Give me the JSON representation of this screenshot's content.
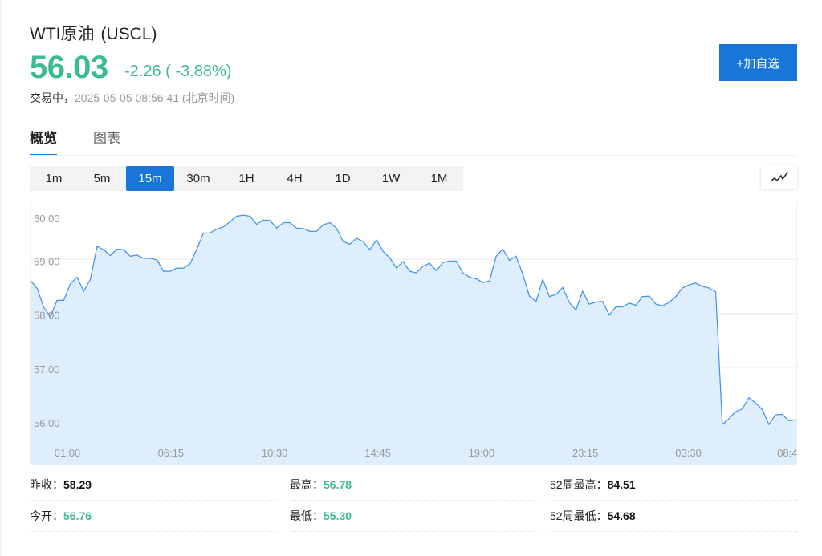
{
  "header": {
    "name": "WTI原油",
    "code": "(USCL)",
    "price": "56.03",
    "change": "-2.26 ( -3.88%)",
    "status_label": "交易中，",
    "timestamp": "2025-05-05 08:56:41 (北京时间)",
    "add_watchlist_label": "+加自选"
  },
  "tabs": [
    {
      "label": "概览",
      "active": true
    },
    {
      "label": "图表",
      "active": false
    }
  ],
  "intervals": [
    {
      "label": "1m"
    },
    {
      "label": "5m"
    },
    {
      "label": "15m",
      "active": true
    },
    {
      "label": "30m"
    },
    {
      "label": "1H"
    },
    {
      "label": "4H"
    },
    {
      "label": "1D"
    },
    {
      "label": "1W"
    },
    {
      "label": "1M"
    }
  ],
  "chart_type_icon": "line-chart-icon",
  "colors": {
    "up_down_green": "#3cbc8e",
    "accent": "#1976d8",
    "line": "#3d8ff0",
    "area": "#deeefd"
  },
  "chart_data": {
    "type": "area",
    "interval": "15m",
    "ylim": [
      55.2,
      60.0
    ],
    "yticks": [
      "60.00",
      "59.00",
      "58.00",
      "57.00",
      "56.00"
    ],
    "ytick_values": [
      60,
      59,
      58,
      57,
      56
    ],
    "xticks": [
      {
        "label": "01:00",
        "index": 5.55
      },
      {
        "label": "06:15",
        "index": 21.1
      },
      {
        "label": "10:30",
        "index": 36.7
      },
      {
        "label": "14:45",
        "index": 52.2
      },
      {
        "label": "19:00",
        "index": 67.8
      },
      {
        "label": "23:15",
        "index": 83.4
      },
      {
        "label": "03:30",
        "index": 98.9
      },
      {
        "label": "08:4",
        "index": 114.3
      }
    ],
    "grid": true,
    "values": [
      58.61,
      58.46,
      58.11,
      57.94,
      58.24,
      58.24,
      58.55,
      58.67,
      58.41,
      58.63,
      59.24,
      59.18,
      59.07,
      59.19,
      59.18,
      59.06,
      59.08,
      59.02,
      59.02,
      58.99,
      58.78,
      58.78,
      58.84,
      58.84,
      58.92,
      59.19,
      59.49,
      59.49,
      59.56,
      59.6,
      59.7,
      59.8,
      59.82,
      59.8,
      59.65,
      59.73,
      59.72,
      59.58,
      59.68,
      59.68,
      59.58,
      59.57,
      59.52,
      59.52,
      59.64,
      59.68,
      59.58,
      59.33,
      59.28,
      59.39,
      59.33,
      59.18,
      59.36,
      59.15,
      59.03,
      58.84,
      58.96,
      58.78,
      58.75,
      58.87,
      58.93,
      58.79,
      58.94,
      58.97,
      58.97,
      58.75,
      58.67,
      58.64,
      58.57,
      58.6,
      59.06,
      59.19,
      58.98,
      59.06,
      58.73,
      58.32,
      58.22,
      58.63,
      58.31,
      58.35,
      58.48,
      58.2,
      58.06,
      58.41,
      58.17,
      58.21,
      58.22,
      57.97,
      58.12,
      58.12,
      58.19,
      58.15,
      58.31,
      58.32,
      58.17,
      58.14,
      58.2,
      58.31,
      58.47,
      58.53,
      58.56,
      58.5,
      58.47,
      58.4,
      55.94,
      56.05,
      56.18,
      56.23,
      56.44,
      56.34,
      56.22,
      55.94,
      56.12,
      56.13,
      56.01,
      56.03
    ]
  },
  "stats": [
    [
      {
        "label": "昨收：",
        "value": "58.29",
        "green": false
      },
      {
        "label": "最高：",
        "value": "56.78",
        "green": true
      },
      {
        "label": "52周最高：",
        "value": "84.51",
        "green": false
      }
    ],
    [
      {
        "label": "今开：",
        "value": "56.76",
        "green": true
      },
      {
        "label": "最低：",
        "value": "55.30",
        "green": true
      },
      {
        "label": "52周最低：",
        "value": "54.68",
        "green": false
      }
    ]
  ]
}
